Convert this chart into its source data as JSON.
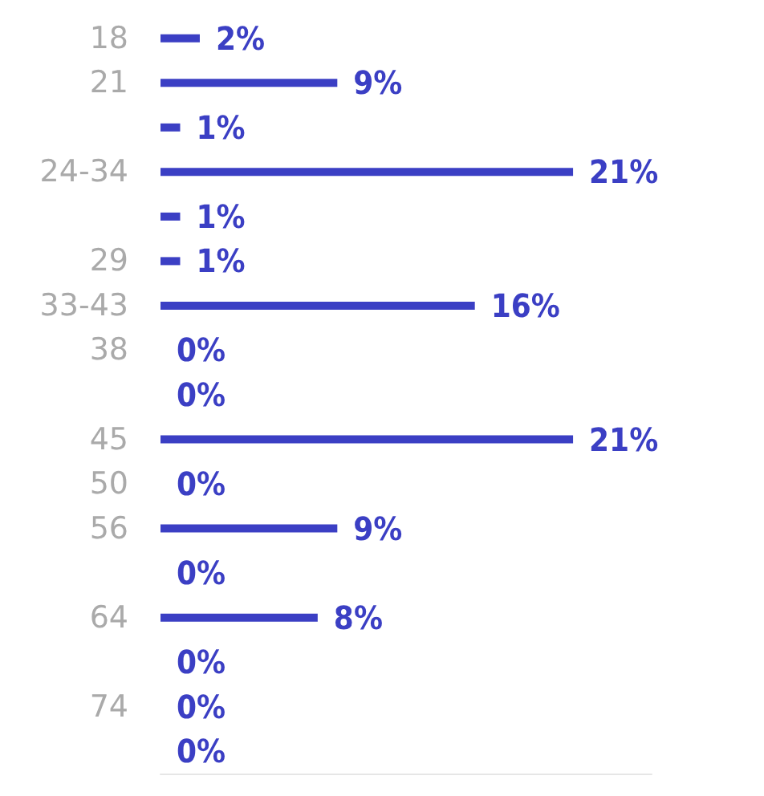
{
  "chart_data": {
    "type": "bar",
    "orientation": "horizontal",
    "categories": [
      "18",
      "21",
      null,
      "24-34",
      null,
      "29",
      "33-43",
      "38",
      null,
      "45",
      "50",
      "56",
      null,
      "64",
      null,
      "74",
      null
    ],
    "values": [
      2,
      9,
      1,
      21,
      1,
      1,
      16,
      0,
      0,
      21,
      0,
      9,
      0,
      8,
      0,
      0,
      0
    ],
    "value_labels": [
      "2%",
      "9%",
      "1%",
      "21%",
      "1%",
      "1%",
      "16%",
      "0%",
      "0%",
      "21%",
      "0%",
      "9%",
      "0%",
      "8%",
      "0%",
      "0%",
      "0%"
    ],
    "color": "#3b3fc4",
    "grid": false
  }
}
